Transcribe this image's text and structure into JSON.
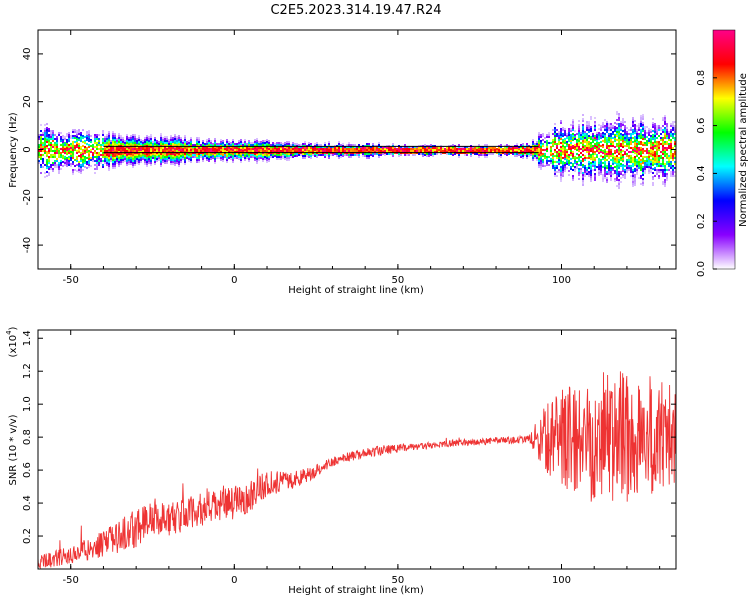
{
  "title": "C2E5.2023.314.19.47.R24",
  "chart_data": [
    {
      "type": "heatmap",
      "xlabel": "Height of straight line (km)",
      "ylabel": "Frequency (Hz)",
      "xlim": [
        -60,
        135
      ],
      "ylim": [
        -50,
        50
      ],
      "xticks": [
        -50,
        0,
        50,
        100
      ],
      "yticks": [
        -40,
        -20,
        0,
        20,
        40
      ],
      "colorbar": {
        "label": "Normalized spectral amplitude",
        "range": [
          0,
          1
        ],
        "ticks": [
          "0.0",
          "0.2",
          "0.4",
          "0.6",
          "0.8"
        ],
        "colors": [
          "#ffffff",
          "#8800ff",
          "#0000ff",
          "#00ffff",
          "#00ff00",
          "#ffff00",
          "#ff0000",
          "#ff0088"
        ]
      },
      "spread_hz_profile": {
        "x": [
          -60,
          -50,
          -40,
          -30,
          -20,
          -10,
          0,
          10,
          20,
          30,
          40,
          50,
          60,
          70,
          80,
          90,
          95,
          100,
          110,
          120,
          130,
          135
        ],
        "half_width_hz": [
          7,
          6,
          5,
          4,
          4,
          3,
          3,
          3,
          2,
          2,
          2,
          1.5,
          1.5,
          1.5,
          1.5,
          2,
          6,
          8,
          9,
          9,
          9,
          9
        ]
      }
    },
    {
      "type": "line",
      "xlabel": "Height of straight line (km)",
      "ylabel": "SNR (10 * v/v)",
      "yscale_label": "(x10",
      "yscale_exp": "4",
      "xlim": [
        -60,
        135
      ],
      "ylim": [
        0,
        1.45
      ],
      "xticks": [
        -50,
        0,
        50,
        100
      ],
      "yticks": [
        "0.2",
        "0.4",
        "0.6",
        "0.8",
        "1.0",
        "1.2",
        "1.4"
      ],
      "series": [
        {
          "color": "#ee3333",
          "x": [
            -60,
            -55,
            -50,
            -45,
            -40,
            -35,
            -30,
            -25,
            -20,
            -15,
            -10,
            -5,
            0,
            5,
            10,
            15,
            20,
            25,
            30,
            35,
            40,
            45,
            50,
            55,
            60,
            65,
            70,
            75,
            80,
            85,
            90,
            95,
            100,
            105,
            110,
            115,
            120,
            125,
            130,
            135
          ],
          "values": [
            0.05,
            0.06,
            0.08,
            0.12,
            0.15,
            0.2,
            0.25,
            0.32,
            0.3,
            0.33,
            0.36,
            0.38,
            0.4,
            0.45,
            0.52,
            0.53,
            0.55,
            0.6,
            0.65,
            0.68,
            0.7,
            0.72,
            0.73,
            0.74,
            0.75,
            0.76,
            0.77,
            0.77,
            0.78,
            0.78,
            0.79,
            0.79,
            0.8,
            0.8,
            0.8,
            0.8,
            0.8,
            0.8,
            0.8,
            0.8
          ],
          "noise_amplitude": [
            0.05,
            0.05,
            0.06,
            0.07,
            0.08,
            0.1,
            0.12,
            0.12,
            0.1,
            0.1,
            0.1,
            0.1,
            0.1,
            0.1,
            0.08,
            0.06,
            0.05,
            0.04,
            0.03,
            0.03,
            0.03,
            0.03,
            0.03,
            0.02,
            0.02,
            0.02,
            0.02,
            0.02,
            0.02,
            0.02,
            0.02,
            0.2,
            0.3,
            0.35,
            0.4,
            0.4,
            0.4,
            0.4,
            0.35,
            0.35
          ]
        }
      ]
    }
  ]
}
